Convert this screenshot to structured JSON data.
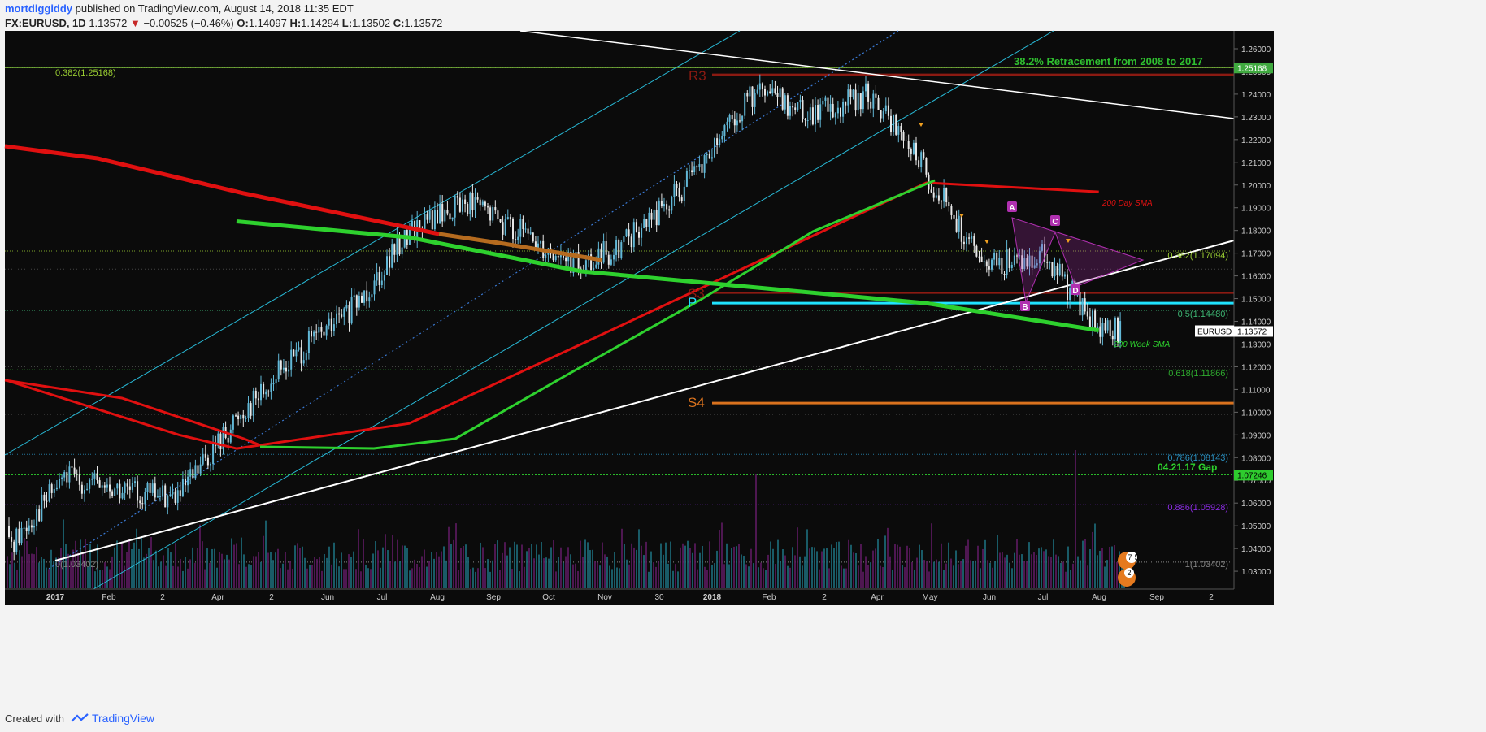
{
  "header": {
    "author": "mortdiggiddy",
    "published": "published on TradingView.com, August 14, 2018 11:35 EDT",
    "symbol": "FX:EURUSD, 1D",
    "last": "1.13572",
    "change": "−0.00525 (−0.46%)",
    "open_label": "O:",
    "open": "1.14097",
    "high_label": "H:",
    "high": "1.14294",
    "low_label": "L:",
    "low": "1.13502",
    "close_label": "C:",
    "close": "1.13572"
  },
  "footer": {
    "created_with": "Created with",
    "brand": "TradingView"
  },
  "colors": {
    "background": "#0b0b0b",
    "up_candle": "#62b8d7",
    "down_candle": "#e8e8e8",
    "sma200_day": "#e01010",
    "sma200_week": "#2ed12e",
    "pivot": "#20e3ff",
    "r3_s3": "#8b1a12",
    "s4": "#d9721e",
    "trendline": "#ffffff",
    "channel": "#28b9d6",
    "volume": "#1c6a78",
    "volume_alt": "#5b1a5e",
    "pattern": "#b030b0"
  },
  "chart_data": {
    "type": "line",
    "title": "",
    "symbol": "EURUSD",
    "last_price_label": "1.13572",
    "ylim": [
      1.022,
      1.266
    ],
    "y_ticks": [
      "1.26000",
      "1.25000",
      "1.24000",
      "1.23000",
      "1.22000",
      "1.21000",
      "1.20000",
      "1.19000",
      "1.18000",
      "1.17000",
      "1.16000",
      "1.15000",
      "1.14000",
      "1.13000",
      "1.12000",
      "1.11000",
      "1.10000",
      "1.09000",
      "1.08000",
      "1.07000",
      "1.06000",
      "1.05000",
      "1.04000",
      "1.03000"
    ],
    "x_tick_labels": [
      "2017",
      "Feb",
      "2",
      "Apr",
      "2",
      "Jun",
      "Jul",
      "Aug",
      "Sep",
      "Oct",
      "Nov",
      "30",
      "2018",
      "Feb",
      "2",
      "Apr",
      "May",
      "Jun",
      "Jul",
      "Aug",
      "Sep",
      "2"
    ],
    "series": [
      {
        "name": "EURUSD",
        "x": [
          "2017-01",
          "2017-02",
          "2017-03",
          "2017-04",
          "2017-05",
          "2017-06",
          "2017-07",
          "2017-08",
          "2017-09",
          "2017-10",
          "2017-11",
          "2017-12",
          "2018-01",
          "2018-02",
          "2018-03",
          "2018-04",
          "2018-05",
          "2018-06",
          "2018-07",
          "2018-08"
        ],
        "values": [
          1.04,
          1.072,
          1.065,
          1.063,
          1.098,
          1.125,
          1.145,
          1.18,
          1.193,
          1.178,
          1.163,
          1.18,
          1.205,
          1.241,
          1.232,
          1.24,
          1.205,
          1.163,
          1.17,
          1.136
        ]
      },
      {
        "name": "200 Day SMA",
        "x": [
          "2017-01",
          "2017-04",
          "2017-05",
          "2017-08",
          "2017-11",
          "2018-05",
          "2018-08"
        ],
        "values": [
          1.114,
          1.09,
          1.084,
          1.095,
          1.13,
          1.201,
          1.197
        ]
      },
      {
        "name": "200 Week SMA",
        "x": [
          "2017-05",
          "2017-08",
          "2017-11",
          "2018-05",
          "2018-08"
        ],
        "values": [
          1.184,
          1.177,
          1.162,
          1.148,
          1.136
        ]
      }
    ],
    "horizontal_levels": [
      {
        "label": "R3",
        "value": 1.2485
      },
      {
        "label": "S3",
        "value": 1.1525
      },
      {
        "label": "P",
        "value": 1.148
      },
      {
        "label": "S4",
        "value": 1.104
      }
    ],
    "fib_levels": [
      {
        "label": "0.382(1.25168)",
        "value": 1.25168
      },
      {
        "label": "0.382(1.17094)",
        "value": 1.17094
      },
      {
        "label": "0.5(1.14480)",
        "value": 1.1448
      },
      {
        "label": "0.618(1.11866)",
        "value": 1.11866
      },
      {
        "label": "0.786(1.08143)",
        "value": 1.08143
      },
      {
        "label": "0.886(1.05928)",
        "value": 1.05928
      },
      {
        "label": "0(1.03402)",
        "value": 1.03402
      },
      {
        "label": "1(1.03402)",
        "value": 1.03402
      }
    ],
    "price_tags": [
      "1.25168",
      "1.07246",
      "1.13572"
    ],
    "annotations": [
      "38.2% Retracement from 2008 to 2017",
      "200 Day SMA",
      "200 Week SMA",
      "04.21.17 Gap",
      "R3",
      "S3",
      "P",
      "S4",
      "A",
      "B",
      "C",
      "D"
    ],
    "badges": [
      "7",
      "5",
      "2"
    ],
    "grid": true,
    "legend": "none"
  }
}
